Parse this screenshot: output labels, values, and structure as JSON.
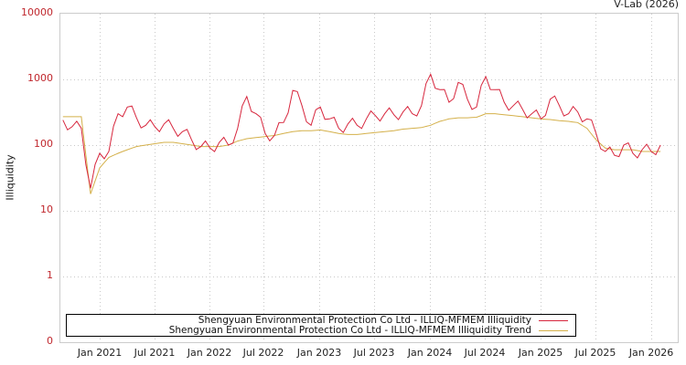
{
  "credit": "V-Lab (2026)",
  "chart_data": {
    "type": "line",
    "title": "",
    "xlabel": "",
    "ylabel": "Illiquidity",
    "yscale": "log",
    "ylim": [
      0,
      10000
    ],
    "y_ticks": [
      "10000",
      "1000",
      "100",
      "10",
      "1",
      "0"
    ],
    "x_ticks": [
      "Jan 2021",
      "Jul 2021",
      "Jan 2022",
      "Jul 2022",
      "Jan 2023",
      "Jul 2023",
      "Jan 2024",
      "Jul 2024",
      "Jan 2025",
      "Jul 2025",
      "Jan 2026"
    ],
    "grid": true,
    "legend_position": "bottom-inside",
    "x": [
      "2020-09",
      "2020-10",
      "2020-11",
      "2020-12",
      "2021-01",
      "2021-02",
      "2021-03",
      "2021-04",
      "2021-05",
      "2021-06",
      "2021-07",
      "2021-08",
      "2021-09",
      "2021-10",
      "2021-11",
      "2021-12",
      "2022-01",
      "2022-02",
      "2022-03",
      "2022-04",
      "2022-05",
      "2022-06",
      "2022-07",
      "2022-08",
      "2022-09",
      "2022-10",
      "2022-11",
      "2022-12",
      "2023-01",
      "2023-02",
      "2023-03",
      "2023-04",
      "2023-05",
      "2023-06",
      "2023-07",
      "2023-08",
      "2023-09",
      "2023-10",
      "2023-11",
      "2023-12",
      "2024-01",
      "2024-02",
      "2024-03",
      "2024-04",
      "2024-05",
      "2024-06",
      "2024-07",
      "2024-08",
      "2024-09",
      "2024-10",
      "2024-11",
      "2024-12",
      "2025-01",
      "2025-02",
      "2025-03",
      "2025-04",
      "2025-05",
      "2025-06",
      "2025-07",
      "2025-08",
      "2025-09",
      "2025-10",
      "2025-11",
      "2025-12",
      "2026-01",
      "2026-02"
    ],
    "series": [
      {
        "name": "Shengyuan Environmental Protection Co Ltd - ILLIQ-MFMEM Illiquidity",
        "color": "#d7263d",
        "values": [
          240,
          190,
          180,
          22,
          75,
          80,
          300,
          380,
          260,
          200,
          190,
          210,
          180,
          160,
          120,
          95,
          90,
          110,
          100,
          180,
          550,
          300,
          150,
          140,
          220,
          680,
          400,
          200,
          380,
          250,
          180,
          210,
          200,
          250,
          280,
          300,
          290,
          320,
          300,
          400,
          1200,
          700,
          450,
          900,
          500,
          380,
          1100,
          700,
          450,
          400,
          350,
          300,
          250,
          500,
          400,
          300,
          320,
          250,
          150,
          80,
          70,
          100,
          75,
          85,
          80,
          100
        ]
      },
      {
        "name": "Shengyuan Environmental Protection Co Ltd - ILLIQ-MFMEM Illiquidity Trend",
        "color": "#d4b04a",
        "values": [
          270,
          270,
          270,
          18,
          45,
          65,
          75,
          85,
          95,
          100,
          105,
          110,
          110,
          105,
          100,
          95,
          95,
          95,
          100,
          115,
          125,
          130,
          135,
          140,
          150,
          160,
          165,
          165,
          170,
          160,
          150,
          145,
          145,
          150,
          155,
          160,
          165,
          175,
          180,
          185,
          200,
          230,
          250,
          260,
          260,
          265,
          300,
          300,
          290,
          280,
          270,
          260,
          250,
          245,
          235,
          230,
          220,
          180,
          120,
          90,
          85,
          85,
          85,
          80,
          80,
          80
        ]
      }
    ]
  },
  "legend": {
    "items": [
      {
        "label": "Shengyuan Environmental Protection Co Ltd - ILLIQ-MFMEM Illiquidity",
        "color": "#d7263d"
      },
      {
        "label": "Shengyuan Environmental Protection Co Ltd - ILLIQ-MFMEM Illiquidity Trend",
        "color": "#d4b04a"
      }
    ]
  }
}
